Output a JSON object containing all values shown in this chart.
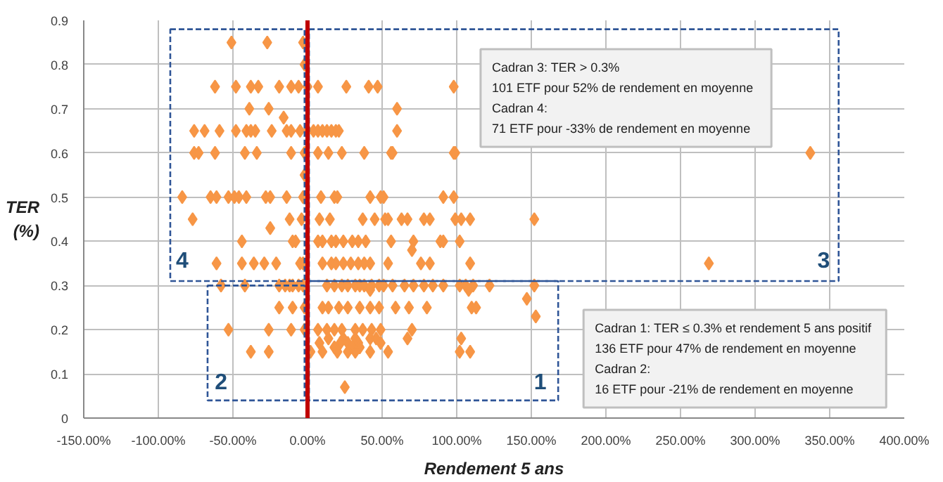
{
  "chart_data": {
    "type": "scatter",
    "xlabel": "Rendement 5 ans",
    "ylabel": "TER (%)",
    "xlim": [
      -150,
      400
    ],
    "ylim": [
      0,
      0.9
    ],
    "xticks": [
      {
        "value": -150,
        "label": "-150.00%"
      },
      {
        "value": -100,
        "label": "-100.00%"
      },
      {
        "value": -50,
        "label": "-50.00%"
      },
      {
        "value": 0,
        "label": "0.00%"
      },
      {
        "value": 50,
        "label": "50.00%"
      },
      {
        "value": 100,
        "label": "100.00%"
      },
      {
        "value": 150,
        "label": "150.00%"
      },
      {
        "value": 200,
        "label": "200.00%"
      },
      {
        "value": 250,
        "label": "250.00%"
      },
      {
        "value": 300,
        "label": "300.00%"
      },
      {
        "value": 350,
        "label": "350.00%"
      },
      {
        "value": 400,
        "label": "400.00%"
      }
    ],
    "yticks": [
      0,
      0.1,
      0.2,
      0.3,
      0.4,
      0.5,
      0.6,
      0.7,
      0.8,
      0.9
    ],
    "grid": true,
    "marker": "diamond",
    "series": [
      {
        "color": "#f79646",
        "x": [
          -51,
          -27,
          -3,
          -2,
          -62,
          -48,
          -38,
          -33,
          -19,
          -11,
          -6,
          0,
          7,
          26,
          41,
          47,
          98,
          -39,
          -26,
          60,
          -16,
          -76,
          -69,
          -59,
          -48,
          -41,
          -38,
          -35,
          -24,
          -14,
          -11,
          -5,
          0,
          4,
          7,
          10,
          13,
          16,
          19,
          21,
          60,
          -76,
          -73,
          -62,
          -42,
          -34,
          -11,
          -2,
          7,
          14,
          23,
          38,
          56,
          57,
          98,
          99,
          337,
          -2,
          -84,
          -65,
          -61,
          -53,
          -49,
          -46,
          -41,
          -28,
          -25,
          -14,
          -3,
          9,
          18,
          20,
          42,
          49,
          51,
          91,
          98,
          -77,
          -12,
          -4,
          8,
          15,
          37,
          45,
          52,
          54,
          63,
          67,
          78,
          82,
          99,
          103,
          109,
          152,
          -25,
          -44,
          -10,
          -8,
          7,
          10,
          16,
          19,
          24,
          30,
          34,
          39,
          56,
          71,
          89,
          91,
          102,
          70,
          -61,
          -44,
          -36,
          -29,
          -21,
          -5,
          -3,
          10,
          16,
          19,
          24,
          29,
          34,
          38,
          42,
          54,
          76,
          82,
          109,
          269,
          -58,
          -42,
          -19,
          -15,
          -12,
          -10,
          -6,
          -3,
          13,
          18,
          23,
          27,
          32,
          35,
          38,
          43,
          48,
          51,
          57,
          65,
          71,
          78,
          84,
          91,
          102,
          106,
          111,
          122,
          152,
          42,
          108,
          147,
          -19,
          -10,
          -2,
          10,
          14,
          21,
          27,
          35,
          42,
          48,
          59,
          68,
          80,
          110,
          113,
          153,
          -53,
          -26,
          -11,
          -2,
          7,
          13,
          18,
          23,
          32,
          37,
          43,
          49,
          70,
          14,
          24,
          32,
          42,
          46,
          67,
          103,
          8,
          22,
          27,
          34,
          49,
          18,
          30,
          35,
          -38,
          -26,
          2,
          10,
          20,
          27,
          32,
          42,
          54,
          102,
          109,
          25
        ],
        "values": [
          0.85,
          0.85,
          0.85,
          0.8,
          0.75,
          0.75,
          0.75,
          0.75,
          0.75,
          0.75,
          0.75,
          0.75,
          0.75,
          0.75,
          0.75,
          0.75,
          0.75,
          0.7,
          0.7,
          0.7,
          0.68,
          0.65,
          0.65,
          0.65,
          0.65,
          0.65,
          0.65,
          0.65,
          0.65,
          0.65,
          0.65,
          0.65,
          0.65,
          0.65,
          0.65,
          0.65,
          0.65,
          0.65,
          0.65,
          0.65,
          0.65,
          0.6,
          0.6,
          0.6,
          0.6,
          0.6,
          0.6,
          0.6,
          0.6,
          0.6,
          0.6,
          0.6,
          0.6,
          0.6,
          0.6,
          0.6,
          0.6,
          0.55,
          0.5,
          0.5,
          0.5,
          0.5,
          0.5,
          0.5,
          0.5,
          0.5,
          0.5,
          0.5,
          0.5,
          0.5,
          0.5,
          0.5,
          0.5,
          0.5,
          0.5,
          0.5,
          0.5,
          0.45,
          0.45,
          0.45,
          0.45,
          0.45,
          0.45,
          0.45,
          0.45,
          0.45,
          0.45,
          0.45,
          0.45,
          0.45,
          0.45,
          0.45,
          0.45,
          0.45,
          0.43,
          0.4,
          0.4,
          0.4,
          0.4,
          0.4,
          0.4,
          0.4,
          0.4,
          0.4,
          0.4,
          0.4,
          0.4,
          0.4,
          0.4,
          0.4,
          0.4,
          0.38,
          0.35,
          0.35,
          0.35,
          0.35,
          0.35,
          0.35,
          0.35,
          0.35,
          0.35,
          0.35,
          0.35,
          0.35,
          0.35,
          0.35,
          0.35,
          0.35,
          0.35,
          0.35,
          0.35,
          0.35,
          0.3,
          0.3,
          0.3,
          0.3,
          0.3,
          0.3,
          0.3,
          0.3,
          0.3,
          0.3,
          0.3,
          0.3,
          0.3,
          0.3,
          0.3,
          0.3,
          0.3,
          0.3,
          0.3,
          0.3,
          0.3,
          0.3,
          0.3,
          0.3,
          0.3,
          0.3,
          0.3,
          0.3,
          0.3,
          0.29,
          0.29,
          0.27,
          0.25,
          0.25,
          0.25,
          0.25,
          0.25,
          0.25,
          0.25,
          0.25,
          0.25,
          0.25,
          0.25,
          0.25,
          0.25,
          0.25,
          0.25,
          0.23,
          0.2,
          0.2,
          0.2,
          0.2,
          0.2,
          0.2,
          0.2,
          0.2,
          0.2,
          0.2,
          0.2,
          0.2,
          0.2,
          0.18,
          0.18,
          0.18,
          0.18,
          0.18,
          0.18,
          0.18,
          0.17,
          0.17,
          0.17,
          0.17,
          0.17,
          0.16,
          0.16,
          0.16,
          0.15,
          0.15,
          0.15,
          0.15,
          0.15,
          0.15,
          0.15,
          0.15,
          0.15,
          0.15,
          0.15,
          0.07
        ]
      }
    ],
    "ref_lines": [
      {
        "axis": "x",
        "value": 0,
        "color": "#c00000"
      }
    ],
    "annotations": [
      "4",
      "3",
      "2",
      "1",
      "Cadran 3: TER > 0.3%\n101 ETF  pour 52% de rendement  en moyenne\nCadran 4:\n71 ETF  pour -33% de rendement  en moyenne",
      "Cadran 1: TER ≤ 0.3% et rendement  5 ans positif\n136 ETF  pour 47% de rendement  en moyenne\nCadran 2:\n16 ETF  pour -21% de rendement  en moyenne"
    ]
  }
}
